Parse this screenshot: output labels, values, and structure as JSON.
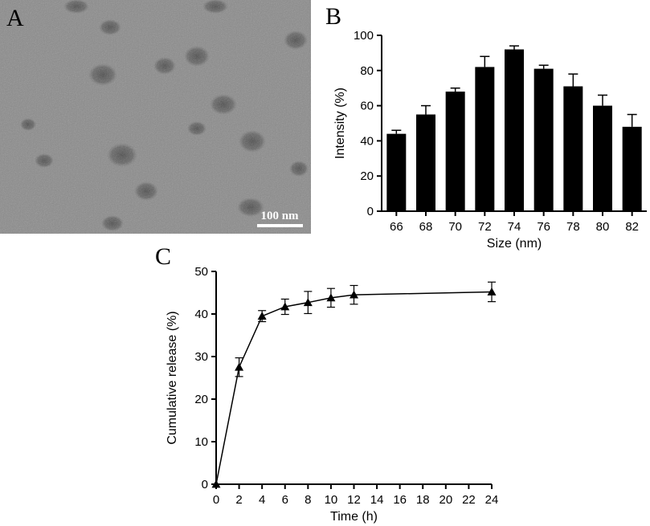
{
  "panels": {
    "A": {
      "letter": "A",
      "scale_bar_label": "100 nm",
      "colors": {
        "background": "#8a8a8a",
        "particle": "#505050",
        "scale_bar": "#ffffff",
        "letter": "#111111"
      }
    },
    "B": {
      "letter": "B"
    },
    "C": {
      "letter": "C"
    }
  },
  "chart_data": [
    {
      "panel": "B",
      "type": "bar",
      "categories": [
        "66",
        "68",
        "70",
        "72",
        "74",
        "76",
        "78",
        "80",
        "82"
      ],
      "values": [
        44,
        55,
        68,
        82,
        92,
        81,
        71,
        60,
        48
      ],
      "errors": [
        2,
        5,
        2,
        6,
        2,
        2,
        7,
        6,
        7
      ],
      "xlabel": "Size (nm)",
      "ylabel": "Intensity (%)",
      "ylim": [
        0,
        100
      ],
      "yticks": [
        0,
        20,
        40,
        60,
        80,
        100
      ],
      "grid": false,
      "colors": {
        "bar": "#000000"
      }
    },
    {
      "panel": "C",
      "type": "line",
      "marker": "triangle",
      "x": [
        0,
        2,
        4,
        6,
        8,
        10,
        12,
        24
      ],
      "y": [
        0,
        27.5,
        39.5,
        41.7,
        42.7,
        43.8,
        44.5,
        45.2
      ],
      "errors": [
        0,
        2.2,
        1.3,
        1.8,
        2.6,
        2.2,
        2.2,
        2.3
      ],
      "xlabel": "Time (h)",
      "ylabel": "Cumulative release (%)",
      "xlim": [
        0,
        24
      ],
      "ylim": [
        0,
        50
      ],
      "xticks": [
        0,
        2,
        4,
        6,
        8,
        10,
        12,
        14,
        16,
        18,
        20,
        22,
        24
      ],
      "yticks": [
        0,
        10,
        20,
        30,
        40,
        50
      ],
      "grid": false,
      "colors": {
        "line": "#000000"
      }
    }
  ]
}
